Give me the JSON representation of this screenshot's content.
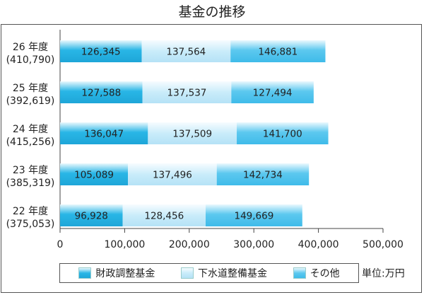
{
  "chart_data": {
    "type": "bar",
    "orientation": "horizontal",
    "stacked": true,
    "title": "基金の推移",
    "categories": [
      "26 年度",
      "25 年度",
      "24 年度",
      "23 年度",
      "22 年度"
    ],
    "category_totals": [
      "(410,790)",
      "(392,619)",
      "(415,256)",
      "(385,319)",
      "(375,053)"
    ],
    "series": [
      {
        "name": "財政調整基金",
        "values": [
          126345,
          127588,
          136047,
          105089,
          96928
        ],
        "labels": [
          "126,345",
          "127,588",
          "136,047",
          "105,089",
          "96,928"
        ],
        "color": "#29b6e6"
      },
      {
        "name": "下水道整備基金",
        "values": [
          137564,
          137537,
          137509,
          137496,
          128456
        ],
        "labels": [
          "137,564",
          "137,537",
          "137,509",
          "137,496",
          "128,456"
        ],
        "color": "#bfe6f7"
      },
      {
        "name": "その他",
        "values": [
          146881,
          127494,
          141700,
          142734,
          149669
        ],
        "labels": [
          "146,881",
          "127,494",
          "141,700",
          "142,734",
          "149,669"
        ],
        "color": "#5cc8ef"
      }
    ],
    "xlim": [
      0,
      500000
    ],
    "x_ticks": [
      0,
      100000,
      200000,
      300000,
      400000,
      500000
    ],
    "x_tick_labels": [
      "0",
      "100,000",
      "200,000",
      "300,000",
      "400,000",
      "500,000"
    ],
    "grid": false,
    "legend_position": "bottom",
    "unit": "単位:万円"
  }
}
